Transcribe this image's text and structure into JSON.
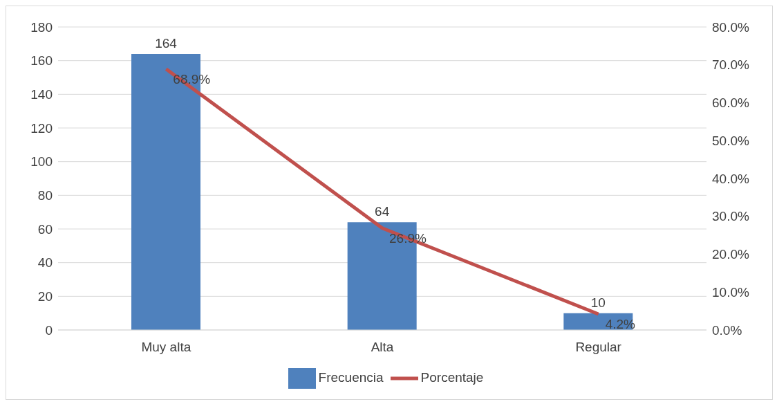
{
  "chart_data": {
    "type": "bar",
    "categories": [
      "Muy alta",
      "Alta",
      "Regular"
    ],
    "series": [
      {
        "name": "Frecuencia",
        "color": "#4f81bd",
        "values": [
          164,
          64,
          10
        ],
        "value_labels": [
          "164",
          "64",
          "10"
        ]
      },
      {
        "name": "Porcentaje",
        "type": "line",
        "axis": "y2",
        "color": "#c0504d",
        "values": [
          68.9,
          26.9,
          4.2
        ],
        "value_labels": [
          "68.9%",
          "26.9%",
          "4.2%"
        ]
      }
    ],
    "ylim": [
      0,
      180
    ],
    "yticks": [
      0,
      20,
      40,
      60,
      80,
      100,
      120,
      140,
      160,
      180
    ],
    "y2lim": [
      0,
      80
    ],
    "y2ticks": [
      {
        "value": 0,
        "label": "0.0%"
      },
      {
        "value": 10,
        "label": "10.0%"
      },
      {
        "value": 20,
        "label": "20.0%"
      },
      {
        "value": 30,
        "label": "30.0%"
      },
      {
        "value": 40,
        "label": "40.0%"
      },
      {
        "value": 50,
        "label": "50.0%"
      },
      {
        "value": 60,
        "label": "60.0%"
      },
      {
        "value": 70,
        "label": "70.0%"
      },
      {
        "value": 80,
        "label": "80.0%"
      }
    ],
    "grid": "y",
    "legend": "bottom",
    "marker": "none",
    "line_style": "solid"
  }
}
